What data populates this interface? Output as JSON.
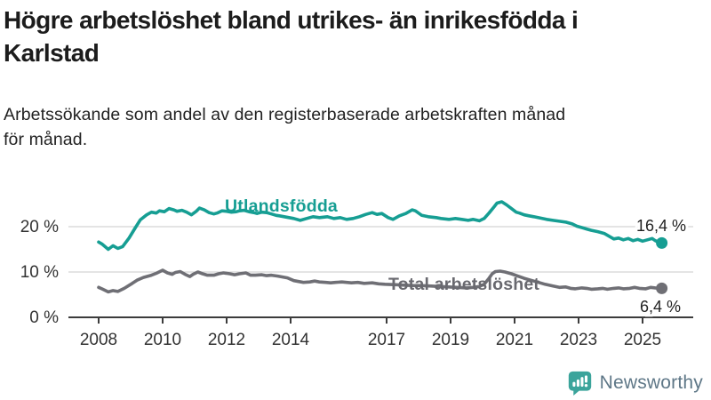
{
  "header": {
    "title_lines": [
      "Högre arbetslöshet bland utrikes- än inrikesfödda i",
      "Karlstad"
    ],
    "subtitle_lines": [
      "Arbetssökande som andel av den registerbaserade arbetskraften månad",
      "för månad."
    ]
  },
  "chart_data": {
    "type": "line",
    "unit": "%",
    "grid": true,
    "x_range": [
      2008,
      2025.6
    ],
    "ylim": [
      0,
      27
    ],
    "x_axis": {
      "ticks": [
        {
          "year": 2008,
          "label": "2008"
        },
        {
          "year": 2010,
          "label": "2010"
        },
        {
          "year": 2012,
          "label": "2012"
        },
        {
          "year": 2014,
          "label": "2014"
        },
        {
          "year": 2017,
          "label": "2017"
        },
        {
          "year": 2019,
          "label": "2019"
        },
        {
          "year": 2021,
          "label": "2021"
        },
        {
          "year": 2023,
          "label": "2023"
        },
        {
          "year": 2025,
          "label": "2025"
        }
      ]
    },
    "y_axis": {
      "ticks": [
        {
          "value": 0,
          "label": "0 %"
        },
        {
          "value": 10,
          "label": "10 %"
        },
        {
          "value": 20,
          "label": "20 %"
        }
      ]
    },
    "series": [
      {
        "name": "Utlandsfödda",
        "color": "#169e93",
        "end_label": "16,4 %",
        "end_value": 16.4,
        "points": [
          [
            2008.0,
            16.6
          ],
          [
            2008.1,
            16.2
          ],
          [
            2008.3,
            15.0
          ],
          [
            2008.45,
            15.8
          ],
          [
            2008.6,
            15.2
          ],
          [
            2008.75,
            15.6
          ],
          [
            2008.95,
            17.5
          ],
          [
            2009.15,
            19.8
          ],
          [
            2009.3,
            21.5
          ],
          [
            2009.5,
            22.6
          ],
          [
            2009.65,
            23.2
          ],
          [
            2009.8,
            23.0
          ],
          [
            2009.9,
            23.5
          ],
          [
            2010.05,
            23.3
          ],
          [
            2010.2,
            24.0
          ],
          [
            2010.35,
            23.7
          ],
          [
            2010.45,
            23.4
          ],
          [
            2010.6,
            23.6
          ],
          [
            2010.75,
            23.2
          ],
          [
            2010.9,
            22.6
          ],
          [
            2011.05,
            23.4
          ],
          [
            2011.15,
            24.1
          ],
          [
            2011.3,
            23.7
          ],
          [
            2011.45,
            23.1
          ],
          [
            2011.6,
            22.8
          ],
          [
            2011.7,
            23.0
          ],
          [
            2011.85,
            23.5
          ],
          [
            2012.0,
            23.4
          ],
          [
            2012.15,
            23.2
          ],
          [
            2012.3,
            23.3
          ],
          [
            2012.4,
            23.5
          ],
          [
            2012.55,
            23.6
          ],
          [
            2012.7,
            23.3
          ],
          [
            2012.85,
            23.1
          ],
          [
            2012.95,
            22.9
          ],
          [
            2013.1,
            23.2
          ],
          [
            2013.25,
            23.1
          ],
          [
            2013.4,
            22.8
          ],
          [
            2013.55,
            22.5
          ],
          [
            2013.65,
            22.4
          ],
          [
            2013.8,
            22.2
          ],
          [
            2013.95,
            22.0
          ],
          [
            2014.1,
            21.8
          ],
          [
            2014.3,
            21.4
          ],
          [
            2014.5,
            21.8
          ],
          [
            2014.7,
            22.2
          ],
          [
            2014.9,
            22.0
          ],
          [
            2015.15,
            22.2
          ],
          [
            2015.35,
            21.8
          ],
          [
            2015.55,
            22.0
          ],
          [
            2015.75,
            21.6
          ],
          [
            2015.95,
            21.8
          ],
          [
            2016.15,
            22.2
          ],
          [
            2016.35,
            22.7
          ],
          [
            2016.55,
            23.1
          ],
          [
            2016.7,
            22.7
          ],
          [
            2016.85,
            22.9
          ],
          [
            2017.05,
            22.0
          ],
          [
            2017.2,
            21.6
          ],
          [
            2017.4,
            22.4
          ],
          [
            2017.6,
            22.9
          ],
          [
            2017.8,
            23.7
          ],
          [
            2017.9,
            23.5
          ],
          [
            2018.1,
            22.5
          ],
          [
            2018.3,
            22.2
          ],
          [
            2018.55,
            22.0
          ],
          [
            2018.7,
            21.8
          ],
          [
            2018.95,
            21.6
          ],
          [
            2019.15,
            21.8
          ],
          [
            2019.35,
            21.6
          ],
          [
            2019.55,
            21.4
          ],
          [
            2019.7,
            21.6
          ],
          [
            2019.9,
            21.3
          ],
          [
            2020.05,
            21.8
          ],
          [
            2020.2,
            23.0
          ],
          [
            2020.35,
            24.3
          ],
          [
            2020.45,
            25.2
          ],
          [
            2020.6,
            25.5
          ],
          [
            2020.75,
            24.8
          ],
          [
            2020.9,
            24.0
          ],
          [
            2021.05,
            23.2
          ],
          [
            2021.15,
            23.0
          ],
          [
            2021.3,
            22.6
          ],
          [
            2021.45,
            22.4
          ],
          [
            2021.6,
            22.2
          ],
          [
            2021.8,
            21.9
          ],
          [
            2022.0,
            21.6
          ],
          [
            2022.2,
            21.4
          ],
          [
            2022.4,
            21.2
          ],
          [
            2022.6,
            21.0
          ],
          [
            2022.8,
            20.6
          ],
          [
            2022.95,
            20.1
          ],
          [
            2023.1,
            19.8
          ],
          [
            2023.25,
            19.5
          ],
          [
            2023.4,
            19.2
          ],
          [
            2023.6,
            18.9
          ],
          [
            2023.8,
            18.5
          ],
          [
            2023.95,
            17.9
          ],
          [
            2024.1,
            17.3
          ],
          [
            2024.25,
            17.5
          ],
          [
            2024.4,
            17.1
          ],
          [
            2024.55,
            17.4
          ],
          [
            2024.7,
            16.9
          ],
          [
            2024.85,
            17.2
          ],
          [
            2025.0,
            16.8
          ],
          [
            2025.15,
            17.1
          ],
          [
            2025.3,
            17.4
          ],
          [
            2025.4,
            16.9
          ],
          [
            2025.5,
            16.6
          ],
          [
            2025.6,
            16.4
          ]
        ]
      },
      {
        "name": "Total arbetslöshet",
        "color": "#6f6f75",
        "end_label": "6,4 %",
        "end_value": 6.4,
        "points": [
          [
            2008.0,
            6.6
          ],
          [
            2008.1,
            6.3
          ],
          [
            2008.3,
            5.6
          ],
          [
            2008.45,
            5.9
          ],
          [
            2008.6,
            5.7
          ],
          [
            2008.8,
            6.4
          ],
          [
            2009.05,
            7.5
          ],
          [
            2009.2,
            8.2
          ],
          [
            2009.4,
            8.8
          ],
          [
            2009.65,
            9.3
          ],
          [
            2009.8,
            9.7
          ],
          [
            2010.0,
            10.4
          ],
          [
            2010.15,
            9.8
          ],
          [
            2010.3,
            9.5
          ],
          [
            2010.4,
            9.9
          ],
          [
            2010.55,
            10.1
          ],
          [
            2010.7,
            9.5
          ],
          [
            2010.85,
            9.0
          ],
          [
            2010.95,
            9.5
          ],
          [
            2011.1,
            10.0
          ],
          [
            2011.25,
            9.6
          ],
          [
            2011.4,
            9.3
          ],
          [
            2011.6,
            9.3
          ],
          [
            2011.75,
            9.6
          ],
          [
            2011.9,
            9.8
          ],
          [
            2012.1,
            9.6
          ],
          [
            2012.25,
            9.4
          ],
          [
            2012.4,
            9.6
          ],
          [
            2012.6,
            9.8
          ],
          [
            2012.75,
            9.3
          ],
          [
            2012.9,
            9.3
          ],
          [
            2013.1,
            9.4
          ],
          [
            2013.25,
            9.2
          ],
          [
            2013.4,
            9.3
          ],
          [
            2013.6,
            9.1
          ],
          [
            2013.75,
            8.9
          ],
          [
            2013.9,
            8.7
          ],
          [
            2014.1,
            8.1
          ],
          [
            2014.25,
            7.9
          ],
          [
            2014.4,
            7.7
          ],
          [
            2014.6,
            7.8
          ],
          [
            2014.75,
            8.0
          ],
          [
            2014.9,
            7.8
          ],
          [
            2015.1,
            7.7
          ],
          [
            2015.25,
            7.6
          ],
          [
            2015.4,
            7.7
          ],
          [
            2015.6,
            7.8
          ],
          [
            2015.75,
            7.7
          ],
          [
            2015.9,
            7.6
          ],
          [
            2016.1,
            7.7
          ],
          [
            2016.3,
            7.5
          ],
          [
            2016.55,
            7.6
          ],
          [
            2016.75,
            7.4
          ],
          [
            2016.95,
            7.3
          ],
          [
            2017.3,
            7.2
          ],
          [
            2017.55,
            7.1
          ],
          [
            2017.85,
            7.0
          ],
          [
            2018.1,
            7.0
          ],
          [
            2018.4,
            6.9
          ],
          [
            2018.65,
            6.8
          ],
          [
            2018.95,
            6.7
          ],
          [
            2019.2,
            6.6
          ],
          [
            2019.5,
            6.5
          ],
          [
            2019.7,
            6.6
          ],
          [
            2019.9,
            6.8
          ],
          [
            2020.05,
            7.3
          ],
          [
            2020.2,
            8.6
          ],
          [
            2020.3,
            9.6
          ],
          [
            2020.4,
            10.1
          ],
          [
            2020.55,
            10.2
          ],
          [
            2020.7,
            10.0
          ],
          [
            2020.9,
            9.6
          ],
          [
            2021.1,
            9.1
          ],
          [
            2021.3,
            8.6
          ],
          [
            2021.55,
            8.1
          ],
          [
            2021.75,
            7.7
          ],
          [
            2021.95,
            7.3
          ],
          [
            2022.2,
            6.9
          ],
          [
            2022.4,
            6.6
          ],
          [
            2022.6,
            6.7
          ],
          [
            2022.75,
            6.4
          ],
          [
            2022.9,
            6.3
          ],
          [
            2023.1,
            6.5
          ],
          [
            2023.25,
            6.4
          ],
          [
            2023.4,
            6.2
          ],
          [
            2023.6,
            6.3
          ],
          [
            2023.75,
            6.4
          ],
          [
            2023.9,
            6.2
          ],
          [
            2024.1,
            6.4
          ],
          [
            2024.25,
            6.5
          ],
          [
            2024.4,
            6.3
          ],
          [
            2024.6,
            6.4
          ],
          [
            2024.75,
            6.6
          ],
          [
            2024.9,
            6.4
          ],
          [
            2025.1,
            6.3
          ],
          [
            2025.25,
            6.6
          ],
          [
            2025.4,
            6.5
          ],
          [
            2025.6,
            6.4
          ]
        ]
      }
    ]
  },
  "footer": {
    "brand": "Newsworthy"
  },
  "colors": {
    "accent_teal": "#169e93",
    "line_gray": "#6f6f75",
    "grid": "#d4d4d4",
    "axis": "#3c3c3c",
    "logo_icon": "#3ba49b",
    "logo_text": "#5e7787"
  }
}
